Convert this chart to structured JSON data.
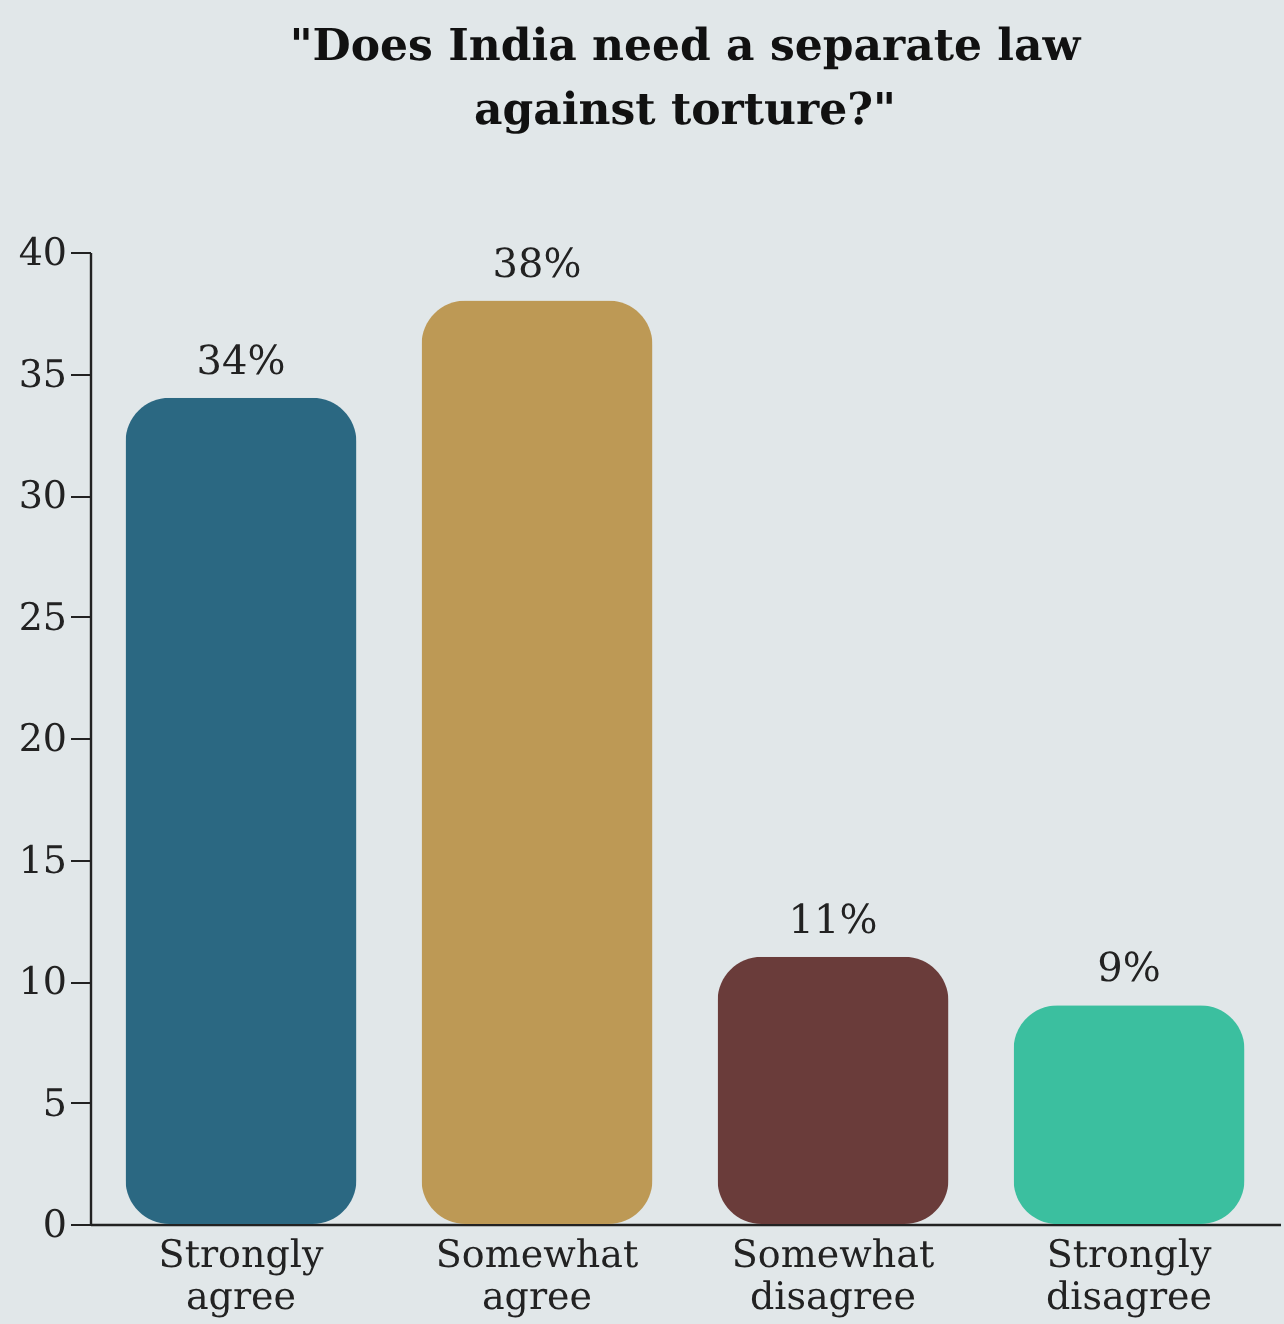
{
  "chart_data": {
    "type": "bar",
    "title": "\"Does India need a separate law against torture?\"",
    "categories": [
      "Strongly agree",
      "Somewhat agree",
      "Somewhat disagree",
      "Strongly disagree"
    ],
    "values": [
      34,
      38,
      11,
      9
    ],
    "colors": [
      "#2b6882",
      "#bd9955",
      "#6a3c3a",
      "#3bbf9f"
    ],
    "value_labels": [
      "34%",
      "38%",
      "11%",
      "9%"
    ],
    "ylim": [
      0,
      40
    ],
    "yticks": [
      0,
      5,
      10,
      15,
      20,
      25,
      30,
      35,
      40
    ],
    "grid": false
  }
}
